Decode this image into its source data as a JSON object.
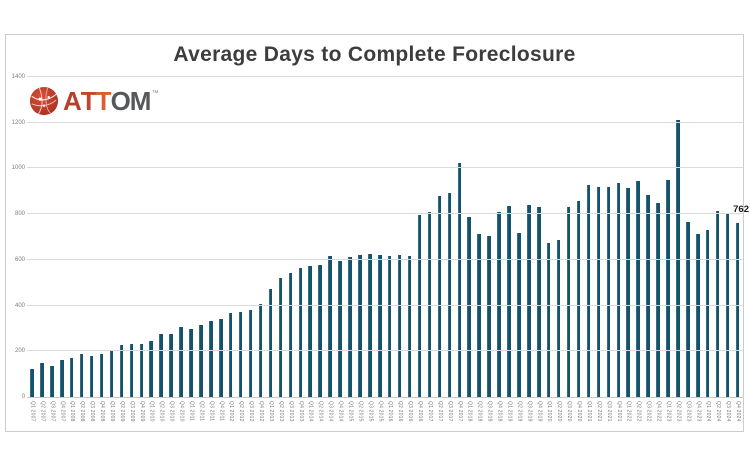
{
  "page": {
    "title": "Average Days to Complete Foreclosure"
  },
  "logo": {
    "name": "ATTOM",
    "tm": "™",
    "letters": [
      {
        "ch": "A",
        "color": "#b7402c"
      },
      {
        "ch": "T",
        "color": "#c7452e"
      },
      {
        "ch": "T",
        "color": "#dd5e2d"
      },
      {
        "ch": "O",
        "color": "#56585c"
      },
      {
        "ch": "M",
        "color": "#56585c"
      }
    ],
    "globe_color": "#c13a27"
  },
  "colors": {
    "bar": "#15536d",
    "grid": "#dadada",
    "axis_text": "#7a7a7a",
    "title_text": "#3d3d3d",
    "card_border": "#cccccc",
    "data_label": "#1a1a1a"
  },
  "chart_data": {
    "type": "bar",
    "title": "Average Days to Complete Foreclosure",
    "xlabel": "",
    "ylabel": "",
    "ylim": [
      0,
      1400
    ],
    "ytick_interval": 200,
    "ytick_labels": [
      "0",
      "200",
      "400",
      "600",
      "800",
      "1000",
      "1200",
      "1400"
    ],
    "grid": true,
    "legend": "none",
    "bar_color": "#15536d",
    "last_point_label": "762",
    "categories": [
      "Q1 2007",
      "Q2 2007",
      "Q3 2007",
      "Q4 2007",
      "Q1 2008",
      "Q2 2008",
      "Q3 2008",
      "Q4 2008",
      "Q1 2009",
      "Q2 2009",
      "Q3 2009",
      "Q4 2009",
      "Q1 2010",
      "Q2 2010",
      "Q3 2010",
      "Q4 2010",
      "Q1 2011",
      "Q2 2011",
      "Q3 2011",
      "Q4 2011",
      "Q1 2012",
      "Q2 2012",
      "Q3 2012",
      "Q4 2012",
      "Q1 2013",
      "Q2 2013",
      "Q3 2013",
      "Q4 2013",
      "Q1 2014",
      "Q2 2014",
      "Q3 2014",
      "Q4 2014",
      "Q1 2015",
      "Q2 2015",
      "Q3 2015",
      "Q4 2015",
      "Q1 2016",
      "Q2 2016",
      "Q3 2016",
      "Q4 2016",
      "Q1 2017",
      "Q2 2017",
      "Q3 2017",
      "Q4 2017",
      "Q1 2018",
      "Q2 2018",
      "Q3 2018",
      "Q4 2018",
      "Q1 2019",
      "Q2 2019",
      "Q3 2019",
      "Q4 2019",
      "Q1 2020",
      "Q2 2020",
      "Q3 2020",
      "Q4 2020",
      "Q1 2021",
      "Q2 2021",
      "Q3 2021",
      "Q4 2021",
      "Q1 2022",
      "Q2 2022",
      "Q3 2022",
      "Q4 2022",
      "Q1 2023",
      "Q2 2023",
      "Q3 2023",
      "Q4 2023",
      "Q1 2024",
      "Q2 2024",
      "Q3 2024",
      "Q4 2024"
    ],
    "values": [
      122,
      150,
      137,
      161,
      172,
      189,
      180,
      190,
      206,
      226,
      230,
      233,
      244,
      275,
      278,
      308,
      296,
      316,
      334,
      343,
      366,
      374,
      379,
      407,
      474,
      521,
      541,
      565,
      572,
      578,
      615,
      597,
      614,
      622,
      624,
      620,
      618,
      622,
      618,
      797,
      811,
      878,
      893,
      1024,
      786,
      715,
      706,
      808,
      834,
      716,
      842,
      833,
      673,
      685,
      830,
      857,
      926,
      918,
      921,
      937,
      914,
      946,
      882,
      850,
      948,
      1212,
      766,
      714,
      732,
      813,
      800,
      762
    ]
  }
}
